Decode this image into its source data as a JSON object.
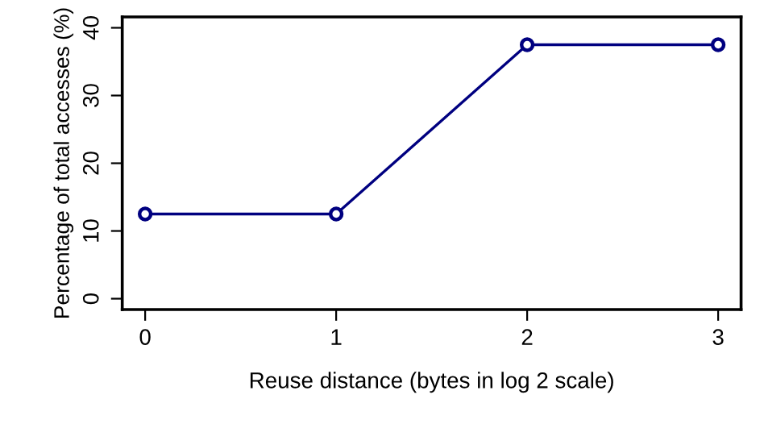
{
  "chart_data": {
    "type": "line",
    "xlabel": "Reuse distance (bytes in log 2 scale)",
    "ylabel": "Percentage of total accesses (%)",
    "x": [
      0,
      1,
      2,
      3
    ],
    "series": [
      {
        "color": "#000080",
        "values": [
          12.5,
          12.5,
          37.5,
          37.5
        ]
      }
    ],
    "marker": "circle",
    "line_style": "solid",
    "xlim": [
      -0.12,
      3.12
    ],
    "ylim": [
      -1.6,
      41.6
    ],
    "xticks": [
      0,
      1,
      2,
      3
    ],
    "yticks": [
      0,
      10,
      20,
      30,
      40
    ],
    "grid": false,
    "legend": false
  }
}
